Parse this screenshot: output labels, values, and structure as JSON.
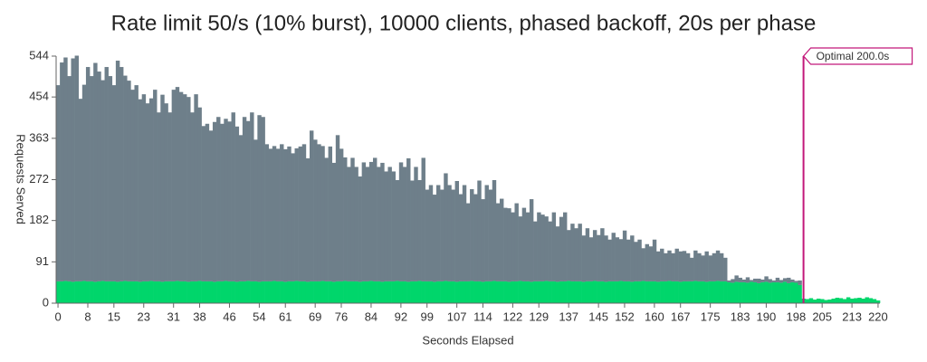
{
  "chart_data": {
    "type": "bar",
    "stacked": true,
    "title": "Rate limit 50/s (10% burst), 10000 clients, phased backoff, 20s per phase",
    "x_label": "Seconds Elapsed",
    "y_label": "Requests Served",
    "x": [
      0,
      1,
      2,
      3,
      4,
      5,
      6,
      7,
      8,
      9,
      10,
      11,
      12,
      13,
      14,
      15,
      16,
      17,
      18,
      19,
      20,
      21,
      22,
      23,
      24,
      25,
      26,
      27,
      28,
      29,
      30,
      31,
      32,
      33,
      34,
      35,
      36,
      37,
      38,
      39,
      40,
      41,
      42,
      43,
      44,
      45,
      46,
      47,
      48,
      49,
      50,
      51,
      52,
      53,
      54,
      55,
      56,
      57,
      58,
      59,
      60,
      61,
      62,
      63,
      64,
      65,
      66,
      67,
      68,
      69,
      70,
      71,
      72,
      73,
      74,
      75,
      76,
      77,
      78,
      79,
      80,
      81,
      82,
      83,
      84,
      85,
      86,
      87,
      88,
      89,
      90,
      91,
      92,
      93,
      94,
      95,
      96,
      97,
      98,
      99,
      100,
      101,
      102,
      103,
      104,
      105,
      106,
      107,
      108,
      109,
      110,
      111,
      112,
      113,
      114,
      115,
      116,
      117,
      118,
      119,
      120,
      121,
      122,
      123,
      124,
      125,
      126,
      127,
      128,
      129,
      130,
      131,
      132,
      133,
      134,
      135,
      136,
      137,
      138,
      139,
      140,
      141,
      142,
      143,
      144,
      145,
      146,
      147,
      148,
      149,
      150,
      151,
      152,
      153,
      154,
      155,
      156,
      157,
      158,
      159,
      160,
      161,
      162,
      163,
      164,
      165,
      166,
      167,
      168,
      169,
      170,
      171,
      172,
      173,
      174,
      175,
      176,
      177,
      178,
      179,
      180,
      181,
      182,
      183,
      184,
      185,
      186,
      187,
      188,
      189,
      190,
      191,
      192,
      193,
      194,
      195,
      196,
      197,
      198,
      199,
      200,
      201,
      202,
      203,
      204,
      205,
      206,
      207,
      208,
      209,
      210,
      211,
      212,
      213,
      214,
      215,
      216,
      217,
      218,
      219,
      220
    ],
    "series": [
      {
        "color": "#00d66b",
        "values": [
          48,
          48,
          49,
          48,
          47,
          48,
          48,
          49,
          48,
          48,
          47,
          48,
          49,
          48,
          48,
          48,
          47,
          48,
          49,
          48,
          48,
          48,
          47,
          48,
          48,
          49,
          48,
          48,
          47,
          48,
          48,
          48,
          49,
          48,
          48,
          47,
          48,
          48,
          49,
          48,
          48,
          48,
          47,
          48,
          48,
          49,
          48,
          48,
          47,
          48,
          48,
          49,
          48,
          48,
          47,
          48,
          48,
          48,
          49,
          48,
          48,
          47,
          48,
          48,
          49,
          48,
          48,
          47,
          48,
          48,
          48,
          49,
          48,
          48,
          47,
          48,
          48,
          49,
          48,
          48,
          48,
          47,
          48,
          48,
          49,
          48,
          48,
          47,
          48,
          48,
          48,
          49,
          48,
          48,
          47,
          48,
          48,
          49,
          48,
          48,
          48,
          47,
          48,
          48,
          49,
          48,
          48,
          47,
          48,
          48,
          48,
          49,
          48,
          48,
          47,
          48,
          48,
          49,
          48,
          48,
          48,
          47,
          48,
          48,
          49,
          48,
          48,
          47,
          48,
          48,
          48,
          49,
          48,
          48,
          47,
          48,
          48,
          49,
          48,
          48,
          48,
          47,
          48,
          48,
          49,
          48,
          48,
          47,
          48,
          48,
          48,
          49,
          48,
          48,
          47,
          48,
          48,
          49,
          48,
          48,
          48,
          47,
          48,
          48,
          49,
          48,
          48,
          47,
          48,
          48,
          48,
          49,
          48,
          48,
          47,
          48,
          48,
          49,
          48,
          48,
          46,
          45,
          47,
          46,
          46,
          45,
          47,
          46,
          44,
          46,
          47,
          45,
          46,
          46,
          45,
          47,
          44,
          46,
          45,
          40,
          10,
          9,
          11,
          8,
          10,
          9,
          7,
          8,
          10,
          12,
          11,
          9,
          13,
          10,
          11,
          12,
          10,
          13,
          11,
          9,
          6
        ]
      },
      {
        "color": "#6e7f8a",
        "values": [
          432,
          482,
          492,
          452,
          492,
          497,
          402,
          432,
          472,
          452,
          482,
          462,
          442,
          472,
          452,
          432,
          487,
          472,
          452,
          442,
          422,
          432,
          402,
          412,
          392,
          402,
          422,
          372,
          412,
          392,
          372,
          422,
          427,
          417,
          412,
          407,
          372,
          412,
          382,
          342,
          347,
          332,
          352,
          362,
          347,
          357,
          352,
          372,
          342,
          322,
          362,
          352,
          372,
          312,
          367,
          362,
          302,
          292,
          297,
          292,
          302,
          292,
          297,
          282,
          292,
          297,
          302,
          272,
          332,
          312,
          302,
          297,
          272,
          297,
          262,
          322,
          292,
          272,
          252,
          272,
          252,
          232,
          262,
          252,
          262,
          272,
          252,
          262,
          242,
          252,
          242,
          222,
          262,
          252,
          272,
          222,
          252,
          222,
          272,
          202,
          212,
          192,
          212,
          202,
          237,
          212,
          202,
          222,
          192,
          212,
          172,
          202,
          192,
          222,
          182,
          212,
          202,
          222,
          172,
          182,
          162,
          162,
          152,
          172,
          142,
          162,
          152,
          182,
          132,
          152,
          147,
          142,
          132,
          152,
          122,
          142,
          152,
          112,
          127,
          117,
          127,
          102,
          117,
          97,
          112,
          102,
          117,
          102,
          92,
          107,
          97,
          92,
          112,
          92,
          102,
          87,
          92,
          72,
          82,
          77,
          92,
          67,
          72,
          62,
          67,
          62,
          72,
          67,
          67,
          62,
          52,
          67,
          62,
          57,
          67,
          57,
          62,
          67,
          62,
          52,
          4,
          8,
          14,
          10,
          6,
          12,
          4,
          8,
          10,
          6,
          12,
          8,
          4,
          10,
          6,
          8,
          12,
          6,
          4,
          10,
          0,
          0,
          0,
          0,
          0,
          0,
          0,
          0,
          0,
          0,
          0,
          0,
          0,
          0,
          0,
          0,
          0,
          0,
          0,
          0,
          0
        ]
      }
    ],
    "xlim": [
      -0.5,
      220.5
    ],
    "ylim": [
      0,
      544
    ],
    "xticks": [
      0,
      8,
      15,
      23,
      31,
      38,
      46,
      54,
      61,
      69,
      76,
      84,
      92,
      99,
      107,
      114,
      122,
      129,
      137,
      145,
      152,
      160,
      167,
      175,
      183,
      190,
      198,
      205,
      213,
      220
    ],
    "yticks": [
      0,
      91,
      182,
      272,
      363,
      454,
      544
    ],
    "annotations": [
      {
        "x": 200,
        "label": "Optimal 200.0s",
        "color": "#c2187a"
      }
    ]
  }
}
